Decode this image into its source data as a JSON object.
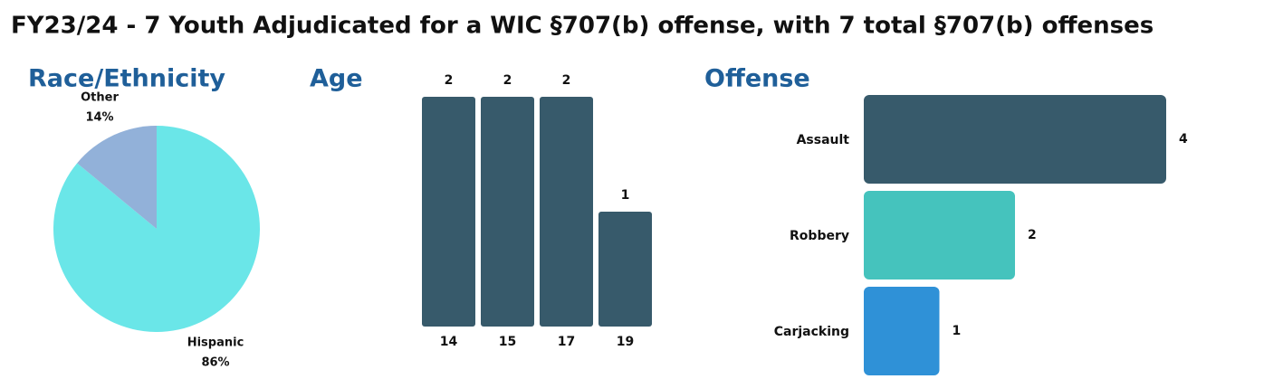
{
  "title": "FY23/24 - 7 Youth Adjudicated for a WIC §707(b) offense, with 7 total §707(b) offenses",
  "chart_data": [
    {
      "type": "pie",
      "title": "Race/Ethnicity",
      "categories": [
        "Hispanic",
        "Other"
      ],
      "values": [
        86,
        14
      ],
      "value_labels": [
        "86%",
        "14%"
      ],
      "colors": [
        "#6ae6e8",
        "#92b1d9"
      ]
    },
    {
      "type": "bar",
      "title": "Age",
      "categories": [
        "14",
        "15",
        "17",
        "19"
      ],
      "values": [
        2,
        2,
        2,
        1
      ],
      "color": "#375a6b"
    },
    {
      "type": "hbar",
      "title": "Offense",
      "categories": [
        "Assault",
        "Robbery",
        "Carjacking"
      ],
      "values": [
        4,
        2,
        1
      ],
      "colors": [
        "#375a6b",
        "#45c3bd",
        "#2f91d7"
      ]
    }
  ]
}
